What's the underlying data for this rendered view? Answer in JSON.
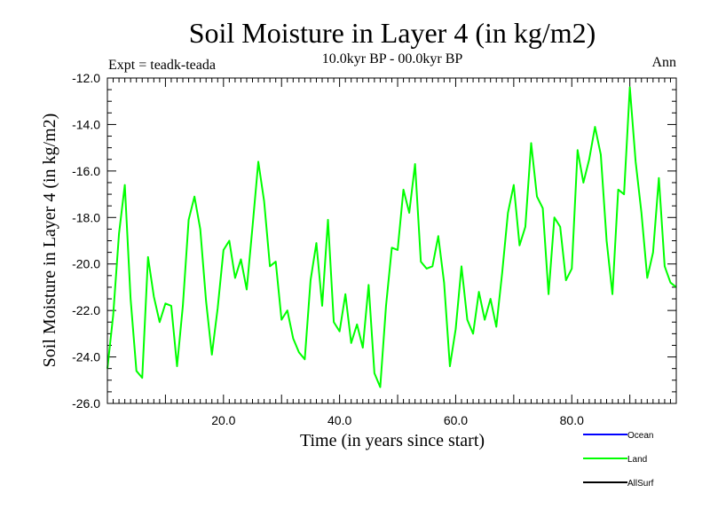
{
  "chart_data": {
    "type": "line",
    "title": "Soil Moisture in Layer 4 (in kg/m2)",
    "subtitle": "10.0kyr BP - 00.0kyr BP",
    "experiment_label": "Expt = teadk-teada",
    "season_label": "Ann",
    "xlabel": "Time (in years since start)",
    "ylabel": "Soil Moisture in Layer 4 (in kg/m2)",
    "xlim": [
      0,
      98
    ],
    "ylim": [
      -26,
      -12
    ],
    "x_ticks": [
      20,
      40,
      60,
      80
    ],
    "x_tick_labels": [
      "20.0",
      "40.0",
      "60.0",
      "80.0"
    ],
    "y_ticks": [
      -12,
      -14,
      -16,
      -18,
      -20,
      -22,
      -24,
      -26
    ],
    "y_tick_labels": [
      "-12.0",
      "-14.0",
      "-16.0",
      "-18.0",
      "-20.0",
      "-22.0",
      "-24.0",
      "-26.0"
    ],
    "legend": [
      {
        "name": "Ocean",
        "color": "#0000ff"
      },
      {
        "name": "Land",
        "color": "#00ff00"
      },
      {
        "name": "AllSurf",
        "color": "#000000"
      }
    ],
    "series": [
      {
        "name": "Land",
        "color": "#00ff00",
        "x": [
          0,
          1,
          2,
          3,
          4,
          5,
          6,
          7,
          8,
          9,
          10,
          11,
          12,
          13,
          14,
          15,
          16,
          17,
          18,
          19,
          20,
          21,
          22,
          23,
          24,
          25,
          26,
          27,
          28,
          29,
          30,
          31,
          32,
          33,
          34,
          35,
          36,
          37,
          38,
          39,
          40,
          41,
          42,
          43,
          44,
          45,
          46,
          47,
          48,
          49,
          50,
          51,
          52,
          53,
          54,
          55,
          56,
          57,
          58,
          59,
          60,
          61,
          62,
          63,
          64,
          65,
          66,
          67,
          68,
          69,
          70,
          71,
          72,
          73,
          74,
          75,
          76,
          77,
          78,
          79,
          80,
          81,
          82,
          83,
          84,
          85,
          86,
          87,
          88,
          89,
          90,
          91,
          92,
          93,
          94,
          95,
          96,
          97,
          98
        ],
        "values": [
          -24.5,
          -22.2,
          -18.7,
          -16.6,
          -21.5,
          -24.6,
          -24.9,
          -19.7,
          -21.4,
          -22.5,
          -21.7,
          -21.8,
          -24.4,
          -21.8,
          -18.1,
          -17.1,
          -18.5,
          -21.6,
          -23.9,
          -21.9,
          -19.4,
          -19.0,
          -20.6,
          -19.8,
          -21.1,
          -18.4,
          -15.6,
          -17.3,
          -20.1,
          -19.9,
          -22.4,
          -22.0,
          -23.2,
          -23.8,
          -24.1,
          -20.7,
          -19.1,
          -21.8,
          -18.1,
          -22.5,
          -22.9,
          -21.3,
          -23.4,
          -22.6,
          -23.6,
          -20.9,
          -24.7,
          -25.3,
          -21.8,
          -19.3,
          -19.4,
          -16.8,
          -17.8,
          -15.7,
          -19.9,
          -20.2,
          -20.1,
          -18.8,
          -20.8,
          -24.4,
          -22.8,
          -20.1,
          -22.4,
          -23.0,
          -21.2,
          -22.4,
          -21.5,
          -22.7,
          -20.4,
          -17.8,
          -16.6,
          -19.2,
          -18.4,
          -14.8,
          -17.1,
          -17.6,
          -21.3,
          -18.0,
          -18.4,
          -20.7,
          -20.2,
          -15.1,
          -16.5,
          -15.5,
          -14.1,
          -15.3,
          -19.0,
          -21.3,
          -16.8,
          -17.0,
          -12.4,
          -15.6,
          -17.8,
          -20.6,
          -19.5,
          -16.3,
          -20.1,
          -20.8,
          -21.0
        ]
      }
    ]
  }
}
